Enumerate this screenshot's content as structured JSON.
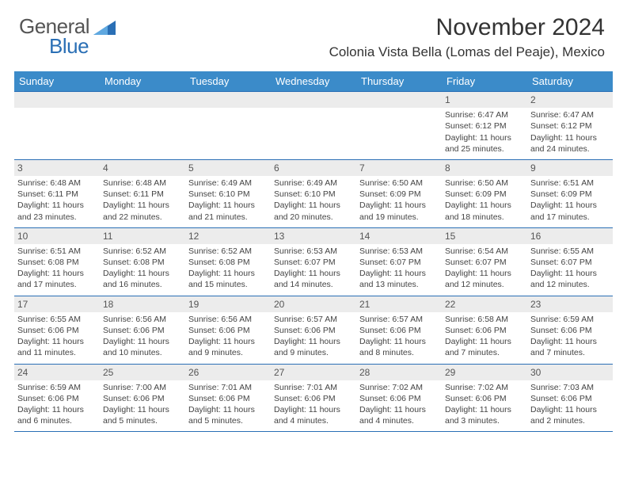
{
  "logo": {
    "general": "General",
    "blue": "Blue",
    "triangle_color": "#2a6fb5"
  },
  "title": {
    "month": "November 2024",
    "location": "Colonia Vista Bella (Lomas del Peaje), Mexico"
  },
  "colors": {
    "header_bg": "#3b8bc9",
    "header_text": "#ffffff",
    "week_border": "#2a6fb5",
    "daynum_bg": "#ececec",
    "body_text": "#444444"
  },
  "day_headers": [
    "Sunday",
    "Monday",
    "Tuesday",
    "Wednesday",
    "Thursday",
    "Friday",
    "Saturday"
  ],
  "weeks": [
    [
      {
        "num": "",
        "sunrise": "",
        "sunset": "",
        "daylight1": "",
        "daylight2": ""
      },
      {
        "num": "",
        "sunrise": "",
        "sunset": "",
        "daylight1": "",
        "daylight2": ""
      },
      {
        "num": "",
        "sunrise": "",
        "sunset": "",
        "daylight1": "",
        "daylight2": ""
      },
      {
        "num": "",
        "sunrise": "",
        "sunset": "",
        "daylight1": "",
        "daylight2": ""
      },
      {
        "num": "",
        "sunrise": "",
        "sunset": "",
        "daylight1": "",
        "daylight2": ""
      },
      {
        "num": "1",
        "sunrise": "Sunrise: 6:47 AM",
        "sunset": "Sunset: 6:12 PM",
        "daylight1": "Daylight: 11 hours",
        "daylight2": "and 25 minutes."
      },
      {
        "num": "2",
        "sunrise": "Sunrise: 6:47 AM",
        "sunset": "Sunset: 6:12 PM",
        "daylight1": "Daylight: 11 hours",
        "daylight2": "and 24 minutes."
      }
    ],
    [
      {
        "num": "3",
        "sunrise": "Sunrise: 6:48 AM",
        "sunset": "Sunset: 6:11 PM",
        "daylight1": "Daylight: 11 hours",
        "daylight2": "and 23 minutes."
      },
      {
        "num": "4",
        "sunrise": "Sunrise: 6:48 AM",
        "sunset": "Sunset: 6:11 PM",
        "daylight1": "Daylight: 11 hours",
        "daylight2": "and 22 minutes."
      },
      {
        "num": "5",
        "sunrise": "Sunrise: 6:49 AM",
        "sunset": "Sunset: 6:10 PM",
        "daylight1": "Daylight: 11 hours",
        "daylight2": "and 21 minutes."
      },
      {
        "num": "6",
        "sunrise": "Sunrise: 6:49 AM",
        "sunset": "Sunset: 6:10 PM",
        "daylight1": "Daylight: 11 hours",
        "daylight2": "and 20 minutes."
      },
      {
        "num": "7",
        "sunrise": "Sunrise: 6:50 AM",
        "sunset": "Sunset: 6:09 PM",
        "daylight1": "Daylight: 11 hours",
        "daylight2": "and 19 minutes."
      },
      {
        "num": "8",
        "sunrise": "Sunrise: 6:50 AM",
        "sunset": "Sunset: 6:09 PM",
        "daylight1": "Daylight: 11 hours",
        "daylight2": "and 18 minutes."
      },
      {
        "num": "9",
        "sunrise": "Sunrise: 6:51 AM",
        "sunset": "Sunset: 6:09 PM",
        "daylight1": "Daylight: 11 hours",
        "daylight2": "and 17 minutes."
      }
    ],
    [
      {
        "num": "10",
        "sunrise": "Sunrise: 6:51 AM",
        "sunset": "Sunset: 6:08 PM",
        "daylight1": "Daylight: 11 hours",
        "daylight2": "and 17 minutes."
      },
      {
        "num": "11",
        "sunrise": "Sunrise: 6:52 AM",
        "sunset": "Sunset: 6:08 PM",
        "daylight1": "Daylight: 11 hours",
        "daylight2": "and 16 minutes."
      },
      {
        "num": "12",
        "sunrise": "Sunrise: 6:52 AM",
        "sunset": "Sunset: 6:08 PM",
        "daylight1": "Daylight: 11 hours",
        "daylight2": "and 15 minutes."
      },
      {
        "num": "13",
        "sunrise": "Sunrise: 6:53 AM",
        "sunset": "Sunset: 6:07 PM",
        "daylight1": "Daylight: 11 hours",
        "daylight2": "and 14 minutes."
      },
      {
        "num": "14",
        "sunrise": "Sunrise: 6:53 AM",
        "sunset": "Sunset: 6:07 PM",
        "daylight1": "Daylight: 11 hours",
        "daylight2": "and 13 minutes."
      },
      {
        "num": "15",
        "sunrise": "Sunrise: 6:54 AM",
        "sunset": "Sunset: 6:07 PM",
        "daylight1": "Daylight: 11 hours",
        "daylight2": "and 12 minutes."
      },
      {
        "num": "16",
        "sunrise": "Sunrise: 6:55 AM",
        "sunset": "Sunset: 6:07 PM",
        "daylight1": "Daylight: 11 hours",
        "daylight2": "and 12 minutes."
      }
    ],
    [
      {
        "num": "17",
        "sunrise": "Sunrise: 6:55 AM",
        "sunset": "Sunset: 6:06 PM",
        "daylight1": "Daylight: 11 hours",
        "daylight2": "and 11 minutes."
      },
      {
        "num": "18",
        "sunrise": "Sunrise: 6:56 AM",
        "sunset": "Sunset: 6:06 PM",
        "daylight1": "Daylight: 11 hours",
        "daylight2": "and 10 minutes."
      },
      {
        "num": "19",
        "sunrise": "Sunrise: 6:56 AM",
        "sunset": "Sunset: 6:06 PM",
        "daylight1": "Daylight: 11 hours",
        "daylight2": "and 9 minutes."
      },
      {
        "num": "20",
        "sunrise": "Sunrise: 6:57 AM",
        "sunset": "Sunset: 6:06 PM",
        "daylight1": "Daylight: 11 hours",
        "daylight2": "and 9 minutes."
      },
      {
        "num": "21",
        "sunrise": "Sunrise: 6:57 AM",
        "sunset": "Sunset: 6:06 PM",
        "daylight1": "Daylight: 11 hours",
        "daylight2": "and 8 minutes."
      },
      {
        "num": "22",
        "sunrise": "Sunrise: 6:58 AM",
        "sunset": "Sunset: 6:06 PM",
        "daylight1": "Daylight: 11 hours",
        "daylight2": "and 7 minutes."
      },
      {
        "num": "23",
        "sunrise": "Sunrise: 6:59 AM",
        "sunset": "Sunset: 6:06 PM",
        "daylight1": "Daylight: 11 hours",
        "daylight2": "and 7 minutes."
      }
    ],
    [
      {
        "num": "24",
        "sunrise": "Sunrise: 6:59 AM",
        "sunset": "Sunset: 6:06 PM",
        "daylight1": "Daylight: 11 hours",
        "daylight2": "and 6 minutes."
      },
      {
        "num": "25",
        "sunrise": "Sunrise: 7:00 AM",
        "sunset": "Sunset: 6:06 PM",
        "daylight1": "Daylight: 11 hours",
        "daylight2": "and 5 minutes."
      },
      {
        "num": "26",
        "sunrise": "Sunrise: 7:01 AM",
        "sunset": "Sunset: 6:06 PM",
        "daylight1": "Daylight: 11 hours",
        "daylight2": "and 5 minutes."
      },
      {
        "num": "27",
        "sunrise": "Sunrise: 7:01 AM",
        "sunset": "Sunset: 6:06 PM",
        "daylight1": "Daylight: 11 hours",
        "daylight2": "and 4 minutes."
      },
      {
        "num": "28",
        "sunrise": "Sunrise: 7:02 AM",
        "sunset": "Sunset: 6:06 PM",
        "daylight1": "Daylight: 11 hours",
        "daylight2": "and 4 minutes."
      },
      {
        "num": "29",
        "sunrise": "Sunrise: 7:02 AM",
        "sunset": "Sunset: 6:06 PM",
        "daylight1": "Daylight: 11 hours",
        "daylight2": "and 3 minutes."
      },
      {
        "num": "30",
        "sunrise": "Sunrise: 7:03 AM",
        "sunset": "Sunset: 6:06 PM",
        "daylight1": "Daylight: 11 hours",
        "daylight2": "and 2 minutes."
      }
    ]
  ]
}
